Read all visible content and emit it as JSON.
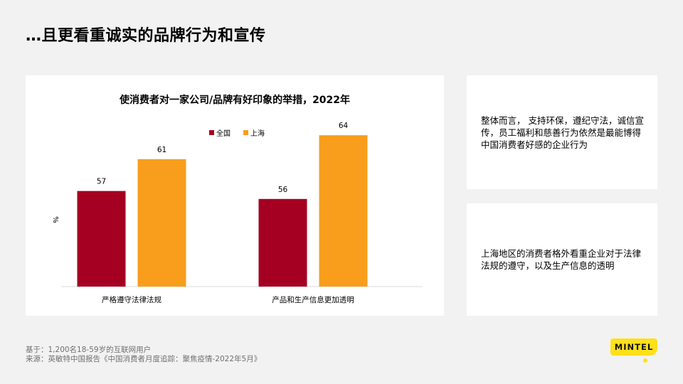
{
  "slide": {
    "title": "…且更看重诚实的品牌行为和宣传"
  },
  "chart_data": {
    "type": "bar",
    "title": "使消费者对一家公司/品牌有好印象的举措，2022年",
    "ylabel": "%",
    "xlabel": "",
    "categories": [
      "严格遵守法律法规",
      "产品和生产信息更加透明"
    ],
    "series": [
      {
        "name": "全国",
        "color": "#a50021",
        "values": [
          57,
          56
        ]
      },
      {
        "name": "上海",
        "color": "#f99d1c",
        "values": [
          61,
          64
        ]
      }
    ],
    "ylim": [
      45,
      66
    ],
    "grid": false,
    "legend": "top-left"
  },
  "notes": {
    "note1": "整体而言， 支持环保，遵纪守法，诚信宣传，员工福利和慈善行为依然是最能博得中国消费者好感的企业行为",
    "note2": "上海地区的消费者格外看重企业对于法律法规的遵守，以及生产信息的透明"
  },
  "footer": {
    "base": "基于：1,200名18-59岁的互联网用户",
    "source": "来源：英敏特中国报告《中国消费者月度追踪：聚焦疫情-2022年5月》",
    "logo_text": "MINTEL"
  }
}
